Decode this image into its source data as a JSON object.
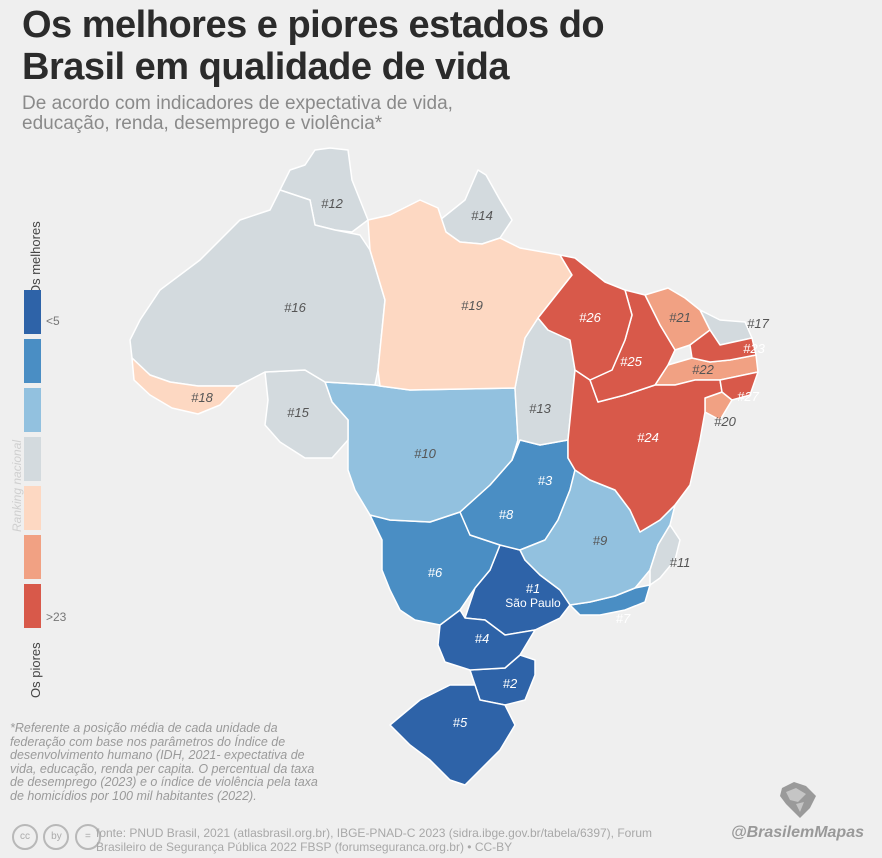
{
  "header": {
    "title": "Os melhores e piores estados do Brasil em qualidade de vida",
    "subtitle": "De acordo com indicadores de expectativa de vida, educação, renda, desemprego e violência*"
  },
  "legend": {
    "top_label": "Os melhores",
    "bottom_label": "Os piores",
    "axis_label": "Ranking nacional",
    "low_mark": "<5",
    "high_mark": ">23",
    "colors": [
      "#2e63a8",
      "#4a8ec4",
      "#92c1df",
      "#d3dade",
      "#fdd8c2",
      "#f1a183",
      "#d8594a"
    ]
  },
  "states": [
    {
      "rank": "#1",
      "name": "São Paulo",
      "color": "#2e63a8"
    },
    {
      "rank": "#2",
      "color": "#2e63a8"
    },
    {
      "rank": "#3",
      "color": "#2e63a8"
    },
    {
      "rank": "#4",
      "color": "#2e63a8"
    },
    {
      "rank": "#5",
      "color": "#2e63a8"
    },
    {
      "rank": "#6",
      "color": "#4a8ec4"
    },
    {
      "rank": "#7",
      "color": "#4a8ec4"
    },
    {
      "rank": "#8",
      "color": "#4a8ec4"
    },
    {
      "rank": "#9",
      "color": "#92c1df"
    },
    {
      "rank": "#10",
      "color": "#92c1df"
    },
    {
      "rank": "#11",
      "color": "#d3dade"
    },
    {
      "rank": "#12",
      "color": "#d3dade"
    },
    {
      "rank": "#13",
      "color": "#d3dade"
    },
    {
      "rank": "#14",
      "color": "#d3dade"
    },
    {
      "rank": "#15",
      "color": "#d3dade"
    },
    {
      "rank": "#16",
      "color": "#d3dade"
    },
    {
      "rank": "#17",
      "color": "#d3dade"
    },
    {
      "rank": "#18",
      "color": "#fdd8c2"
    },
    {
      "rank": "#19",
      "color": "#fdd8c2"
    },
    {
      "rank": "#20",
      "color": "#f1a183"
    },
    {
      "rank": "#21",
      "color": "#f1a183"
    },
    {
      "rank": "#22",
      "color": "#f1a183"
    },
    {
      "rank": "#23",
      "color": "#d8594a"
    },
    {
      "rank": "#24",
      "color": "#d8594a"
    },
    {
      "rank": "#25",
      "color": "#d8594a"
    },
    {
      "rank": "#26",
      "color": "#d8594a"
    },
    {
      "rank": "#27",
      "color": "#d8594a"
    }
  ],
  "footnote": "*Referente a posição média de cada unidade da federação com base nos parâmetros do Índice de desenvolvimento humano (IDH, 2021- expectativa de vida, educação, renda per capita. O percentual da taxa de desemprego (2023) e o índice de violência pela taxa de homicídios por 100 mil habitantes (2022).",
  "source": "fonte: PNUD Brasil, 2021 (atlasbrasil.org.br), IBGE-PNAD-C 2023 (sidra.ibge.gov.br/tabela/6397), Forum Brasileiro de Segurança Pública 2022 FBSP (forumseguranca.org.br) • CC-BY",
  "license_icons": [
    "cc",
    "by",
    "="
  ],
  "brand": "@BrasilemMapas"
}
